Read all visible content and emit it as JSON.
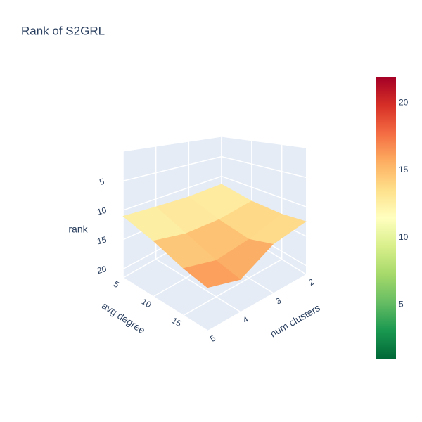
{
  "chart_data": {
    "type": "surface",
    "title": "Rank of S2GRL",
    "x_label": "num clusters",
    "y_label": "avg degree",
    "z_label": "rank",
    "x": [
      2,
      3,
      4,
      5
    ],
    "y": [
      5,
      10,
      15,
      19
    ],
    "z": [
      [
        12,
        12,
        11.5,
        11
      ],
      [
        13,
        14,
        14,
        13
      ],
      [
        13,
        15,
        16,
        15
      ],
      [
        12.5,
        14,
        17,
        16
      ]
    ],
    "xlim": [
      2,
      5
    ],
    "xticks": [
      2,
      3,
      4,
      5
    ],
    "ylim": [
      5,
      19
    ],
    "yticks": [
      5,
      10,
      15
    ],
    "zlim": [
      0,
      21.5
    ],
    "zticks": [
      5,
      10,
      15,
      20
    ],
    "z_reversed": true,
    "clim": [
      1,
      21.9
    ],
    "colorbar_ticks": [
      5,
      10,
      15,
      20
    ],
    "colorscale": [
      [
        0,
        "#006837"
      ],
      [
        0.1,
        "#1a9850"
      ],
      [
        0.2,
        "#66bd63"
      ],
      [
        0.3,
        "#a6d96a"
      ],
      [
        0.4,
        "#d9ef8b"
      ],
      [
        0.5,
        "#ffffbf"
      ],
      [
        0.6,
        "#fee08b"
      ],
      [
        0.7,
        "#fdae61"
      ],
      [
        0.8,
        "#f46d43"
      ],
      [
        0.9,
        "#d73027"
      ],
      [
        1,
        "#a50026"
      ]
    ]
  }
}
